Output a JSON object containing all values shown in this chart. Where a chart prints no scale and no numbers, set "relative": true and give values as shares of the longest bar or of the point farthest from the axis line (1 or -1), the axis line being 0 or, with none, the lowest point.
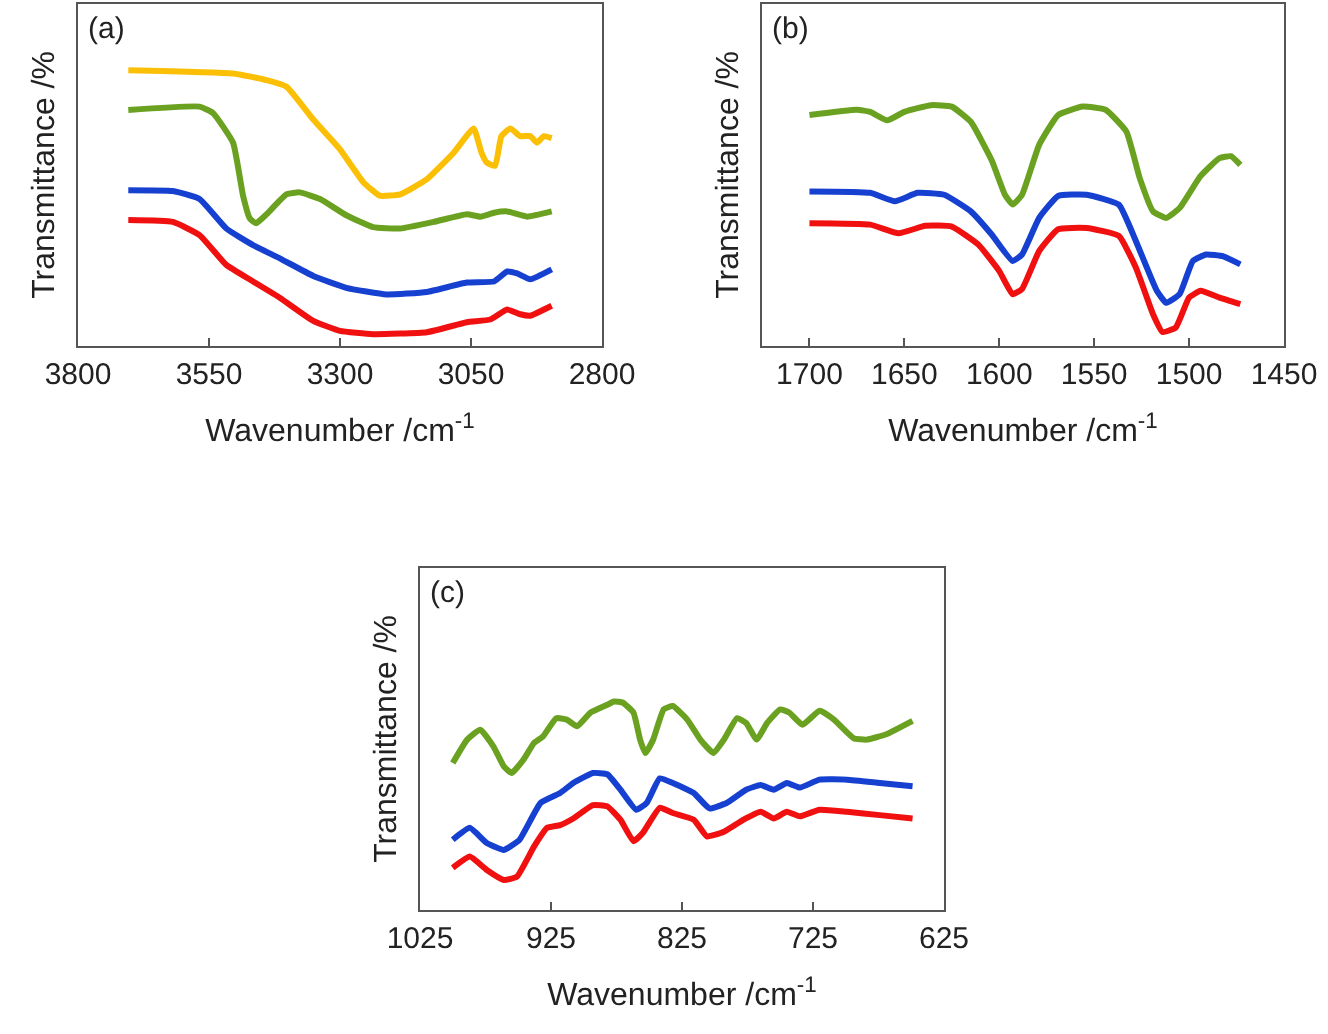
{
  "chart_data": [
    {
      "type": "line",
      "title": "(a)",
      "xlabel": "Wavenumber /cm$^{-1}$",
      "ylabel": "Transmittance /%",
      "relative": true,
      "tick_labels": "x",
      "xlim": [
        3800,
        2800
      ],
      "xticks": [
        3800,
        3550,
        3300,
        3050,
        2800
      ],
      "line_style": "solid",
      "marker": "none",
      "series": [
        {
          "color": "#fbbf05",
          "x": [
            3704,
            3504,
            3440,
            3402,
            3351,
            3300,
            3255,
            3224,
            3185,
            3134,
            3083,
            3045,
            3030,
            3020,
            3004,
            2992,
            2975,
            2956,
            2937,
            2924,
            2911,
            2896
          ],
          "values": [
            1.0,
            0.988,
            0.964,
            0.94,
            0.821,
            0.713,
            0.593,
            0.545,
            0.55,
            0.605,
            0.701,
            0.789,
            0.701,
            0.665,
            0.653,
            0.761,
            0.789,
            0.761,
            0.761,
            0.737,
            0.761,
            0.754
          ]
        },
        {
          "color": "#6aa121",
          "x": [
            3704,
            3568,
            3542,
            3504,
            3485,
            3472,
            3460,
            3440,
            3402,
            3377,
            3338,
            3288,
            3237,
            3185,
            3121,
            3058,
            3032,
            3006,
            2981,
            2943,
            2896
          ],
          "values": [
            0.856,
            0.868,
            0.844,
            0.737,
            0.545,
            0.462,
            0.445,
            0.478,
            0.55,
            0.557,
            0.533,
            0.474,
            0.431,
            0.426,
            0.45,
            0.478,
            0.469,
            0.483,
            0.488,
            0.469,
            0.488
          ]
        },
        {
          "color": "#1540d0",
          "x": [
            3704,
            3619,
            3568,
            3517,
            3466,
            3415,
            3351,
            3288,
            3211,
            3134,
            3058,
            3006,
            2981,
            2962,
            2937,
            2896
          ],
          "values": [
            0.565,
            0.562,
            0.533,
            0.426,
            0.366,
            0.318,
            0.254,
            0.211,
            0.187,
            0.196,
            0.23,
            0.234,
            0.27,
            0.263,
            0.242,
            0.278
          ]
        },
        {
          "color": "#f01010",
          "x": [
            3704,
            3619,
            3568,
            3517,
            3466,
            3415,
            3351,
            3300,
            3237,
            3134,
            3058,
            3013,
            2981,
            2956,
            2937,
            2896
          ],
          "values": [
            0.457,
            0.45,
            0.402,
            0.294,
            0.234,
            0.175,
            0.091,
            0.055,
            0.043,
            0.05,
            0.086,
            0.096,
            0.132,
            0.115,
            0.11,
            0.146
          ]
        }
      ]
    },
    {
      "type": "line",
      "title": "(b)",
      "xlabel": "Wavenumber /cm$^{-1}$",
      "ylabel": "Transmittance /%",
      "relative": true,
      "tick_labels": "x",
      "xlim": [
        1725,
        1450
      ],
      "xticks": [
        1700,
        1650,
        1600,
        1550,
        1500,
        1450
      ],
      "line_style": "solid",
      "marker": "none",
      "series": [
        {
          "color": "#6aa121",
          "x": [
            1700,
            1675,
            1668,
            1659,
            1650,
            1636,
            1625,
            1615,
            1604,
            1597,
            1593,
            1588,
            1579,
            1569,
            1556,
            1544,
            1533,
            1526,
            1519,
            1512,
            1505,
            1494,
            1484,
            1478,
            1473
          ],
          "values": [
            0.959,
            0.981,
            0.972,
            0.937,
            0.972,
            1.0,
            0.994,
            0.931,
            0.771,
            0.628,
            0.587,
            0.628,
            0.835,
            0.959,
            0.994,
            0.981,
            0.89,
            0.697,
            0.559,
            0.532,
            0.573,
            0.705,
            0.78,
            0.788,
            0.752
          ]
        },
        {
          "color": "#1540d0",
          "x": [
            1700,
            1668,
            1655,
            1643,
            1629,
            1615,
            1604,
            1593,
            1588,
            1579,
            1569,
            1554,
            1537,
            1528,
            1517,
            1512,
            1505,
            1498,
            1491,
            1482,
            1473
          ],
          "values": [
            0.642,
            0.636,
            0.601,
            0.636,
            0.628,
            0.559,
            0.463,
            0.353,
            0.38,
            0.532,
            0.623,
            0.628,
            0.587,
            0.435,
            0.229,
            0.179,
            0.215,
            0.353,
            0.38,
            0.372,
            0.339
          ]
        },
        {
          "color": "#f01010",
          "x": [
            1700,
            1668,
            1653,
            1639,
            1625,
            1611,
            1600,
            1593,
            1588,
            1579,
            1569,
            1554,
            1537,
            1528,
            1519,
            1514,
            1507,
            1500,
            1494,
            1484,
            1473
          ],
          "values": [
            0.51,
            0.504,
            0.468,
            0.499,
            0.496,
            0.421,
            0.311,
            0.215,
            0.237,
            0.394,
            0.485,
            0.49,
            0.457,
            0.325,
            0.132,
            0.058,
            0.077,
            0.201,
            0.229,
            0.201,
            0.174
          ]
        }
      ]
    },
    {
      "type": "line",
      "title": "(c)",
      "xlabel": "Wavenumber /cm$^{-1}$",
      "ylabel": "Transmittance /%",
      "relative": true,
      "tick_labels": "x",
      "xlim": [
        1025,
        625
      ],
      "xticks": [
        1025,
        925,
        825,
        725,
        625
      ],
      "line_style": "solid",
      "marker": "none",
      "series": [
        {
          "color": "#6aa121",
          "x": [
            1000,
            989,
            979,
            969,
            961,
            955,
            946,
            938,
            931,
            921,
            913,
            905,
            895,
            882,
            877,
            870,
            862,
            857,
            853,
            847,
            839,
            832,
            821,
            811,
            801,
            793,
            783,
            776,
            768,
            760,
            750,
            743,
            733,
            720,
            709,
            694,
            684,
            669,
            649
          ],
          "values": [
            0.705,
            0.817,
            0.865,
            0.785,
            0.689,
            0.657,
            0.721,
            0.801,
            0.833,
            0.92,
            0.913,
            0.881,
            0.946,
            0.984,
            1.0,
            0.994,
            0.946,
            0.817,
            0.753,
            0.817,
            0.962,
            0.978,
            0.913,
            0.817,
            0.753,
            0.817,
            0.92,
            0.897,
            0.817,
            0.897,
            0.962,
            0.946,
            0.888,
            0.955,
            0.913,
            0.824,
            0.817,
            0.843,
            0.907
          ]
        },
        {
          "color": "#1540d0",
          "x": [
            1000,
            987,
            974,
            961,
            949,
            933,
            918,
            908,
            893,
            882,
            872,
            860,
            852,
            842,
            832,
            816,
            804,
            791,
            776,
            765,
            755,
            745,
            735,
            720,
            699,
            674,
            649
          ],
          "values": [
            0.337,
            0.394,
            0.321,
            0.288,
            0.337,
            0.513,
            0.561,
            0.609,
            0.657,
            0.651,
            0.577,
            0.481,
            0.513,
            0.631,
            0.609,
            0.561,
            0.487,
            0.513,
            0.577,
            0.599,
            0.577,
            0.609,
            0.587,
            0.625,
            0.625,
            0.609,
            0.593
          ]
        },
        {
          "color": "#f01010",
          "x": [
            1000,
            987,
            974,
            961,
            951,
            938,
            928,
            918,
            908,
            893,
            882,
            872,
            862,
            855,
            842,
            832,
            816,
            806,
            793,
            778,
            765,
            755,
            745,
            735,
            720,
            699,
            674,
            649
          ],
          "values": [
            0.202,
            0.256,
            0.192,
            0.144,
            0.16,
            0.304,
            0.394,
            0.407,
            0.439,
            0.503,
            0.497,
            0.433,
            0.33,
            0.369,
            0.49,
            0.465,
            0.433,
            0.353,
            0.375,
            0.433,
            0.471,
            0.439,
            0.471,
            0.449,
            0.481,
            0.471,
            0.455,
            0.439
          ]
        }
      ]
    }
  ]
}
